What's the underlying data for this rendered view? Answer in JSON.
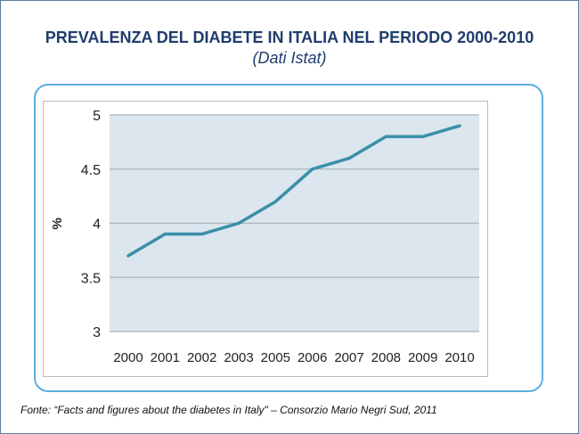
{
  "title": "PREVALENZA DEL DIABETE IN ITALIA NEL PERIODO 2000-2010",
  "subtitle": "(Dati Istat)",
  "footer": "Fonte: “Facts and figures about the diabetes in Italy\" – Consorzio Mario Negri Sud, 2011",
  "chart_data": {
    "type": "line",
    "categories": [
      "2000",
      "2001",
      "2002",
      "2003",
      "2005",
      "2006",
      "2007",
      "2008",
      "2009",
      "2010"
    ],
    "values": [
      3.7,
      3.9,
      3.9,
      4.0,
      4.2,
      4.5,
      4.6,
      4.8,
      4.8,
      4.9
    ],
    "ylabel": "%",
    "xlabel": "",
    "ylim": [
      3,
      5
    ],
    "yticks": [
      "3",
      "3.5",
      "4",
      "4.5",
      "5"
    ],
    "grid": true,
    "colors": {
      "line": "#3a8fa8",
      "plot_bg": "#dbe6ee",
      "grid": "#a9b4bb"
    }
  }
}
